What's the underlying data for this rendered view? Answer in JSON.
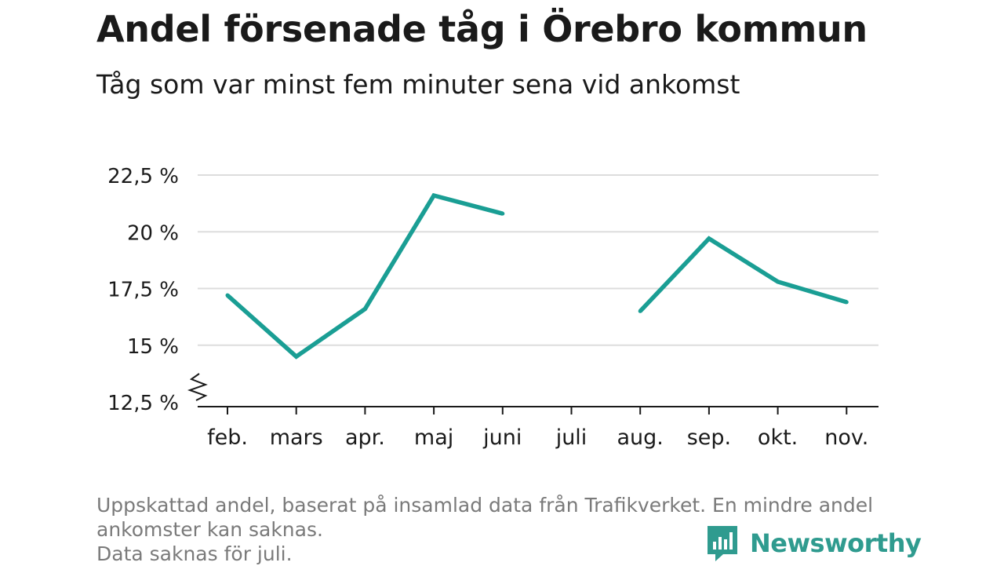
{
  "header": {
    "title": "Andel försenade tåg i Örebro kommun",
    "subtitle": "Tåg som var minst fem minuter sena vid ankomst"
  },
  "chart_data": {
    "type": "line",
    "categories": [
      "feb.",
      "mars",
      "apr.",
      "maj",
      "juni",
      "juli",
      "aug.",
      "sep.",
      "okt.",
      "nov."
    ],
    "series": [
      {
        "values": [
          17.2,
          14.5,
          16.6,
          21.6,
          20.8,
          null,
          16.5,
          19.7,
          17.8,
          16.9
        ]
      }
    ],
    "ylim": [
      12.5,
      22.5
    ],
    "yticks": [
      12.5,
      15,
      17.5,
      20,
      22.5
    ],
    "ytick_labels": [
      "12,5 %",
      "15 %",
      "17,5 %",
      "20 %",
      "22,5 %"
    ],
    "axis_break": true,
    "grid": true,
    "legend": "none",
    "line_color": "#1a9e94"
  },
  "footnote": {
    "line1": "Uppskattad andel, baserat på insamlad data från Trafikverket. En mindre andel",
    "line2": "ankomster kan saknas.",
    "line3": "Data saknas för juli."
  },
  "brand": {
    "name": "Newsworthy",
    "color": "#2f9b8f",
    "icon": "newsworthy-logo-icon"
  }
}
